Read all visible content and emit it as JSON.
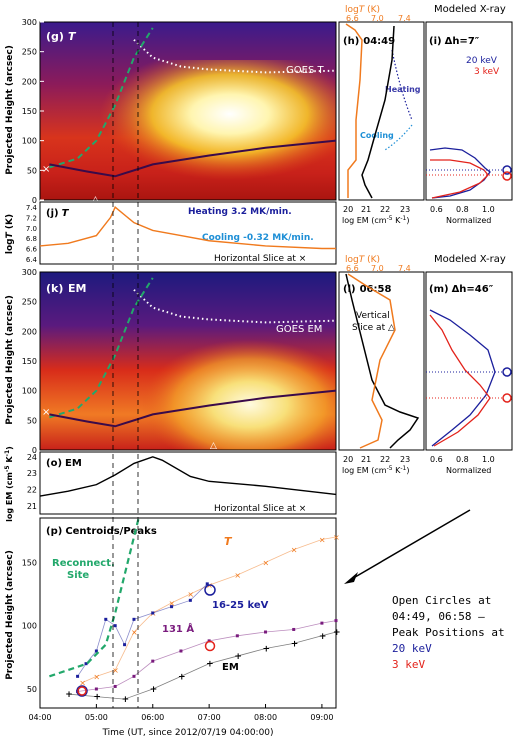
{
  "colors": {
    "orange": "#f07a1e",
    "navy": "#1b1f9c",
    "red": "#e3231b",
    "purple": "#7a1c7e",
    "green": "#22a86b",
    "lightblue": "#1e8fd6",
    "black": "#000000"
  },
  "panels": {
    "g": {
      "label": "(g)",
      "var": "T",
      "note": "GOES T"
    },
    "h": {
      "label": "(h)",
      "time": "04:49",
      "xlabel": "log EM (cm",
      "xlabel_exp": "-5",
      "xlabel_tail": " K",
      "xlabel_exp2": "-1",
      "xlabel_close": ")",
      "top_axis": "log",
      "top_axis_T": "T",
      "top_axis_unit": " (K)",
      "top_ticks": [
        "6.6",
        "7.0",
        "7.4"
      ],
      "heating": "Heating",
      "cooling": "Cooling",
      "bottom_ticks": [
        "20",
        "21",
        "22",
        "23"
      ]
    },
    "i": {
      "label": "(i)",
      "title": "Modeled X-ray",
      "dh": "Δh=7″",
      "e1": "20 keV",
      "e2": "3 keV",
      "xlabel": "Normalized",
      "ticks": [
        "0.6",
        "0.8",
        "1.0"
      ]
    },
    "j": {
      "label": "(j)",
      "var": "T",
      "ylabel": "log",
      "ylabel_T": "T",
      "ylabel_unit": " (K)",
      "heating_rate": "Heating 3.2 MK/min.",
      "cooling_rate": "Cooling -0.32 MK/min.",
      "slice": "Horizontal Slice at ×",
      "yticks": [
        "6.4",
        "6.6",
        "6.8",
        "7.0",
        "7.2",
        "7.4"
      ]
    },
    "k": {
      "label": "(k)",
      "var": "EM",
      "note": "GOES EM"
    },
    "l": {
      "label": "(l)",
      "time": "06:58",
      "slice1": "Vertical",
      "slice2": "Slice at △",
      "top_axis": "log",
      "top_axis_T": "T",
      "top_axis_unit": " (K)",
      "top_ticks": [
        "6.6",
        "7.0",
        "7.4"
      ],
      "xlabel": "log EM (cm",
      "xlabel_exp": "-5",
      "xlabel_tail": " K",
      "xlabel_exp2": "-1",
      "xlabel_close": ")",
      "bottom_ticks": [
        "20",
        "21",
        "22",
        "23"
      ]
    },
    "m": {
      "label": "(m)",
      "title": "Modeled X-ray",
      "dh": "Δh=46″",
      "xlabel": "Normalized",
      "ticks": [
        "0.6",
        "0.8",
        "1.0"
      ]
    },
    "o": {
      "label": "(o)",
      "var": "EM",
      "ylabel": "log EM (cm",
      "ylabel_exp": "-5",
      "ylabel_tail": " K",
      "ylabel_exp2": "-1",
      "ylabel_close": ")",
      "slice": "Horizontal Slice at ×",
      "yticks": [
        "21",
        "22",
        "23",
        "24"
      ]
    },
    "p": {
      "label": "(p)",
      "title": "Centroids/Peaks",
      "reconnect1": "Reconnect.",
      "reconnect2": "Site",
      "T": "T",
      "hard": "16-25 keV",
      "euv": "131 Å",
      "em": "EM",
      "xlabel": "Time (UT, since 2012/07/19 04:00:00)",
      "xticks": [
        "04:00",
        "05:00",
        "06:00",
        "07:00",
        "08:00",
        "09:00"
      ],
      "yticks": [
        "50",
        "100",
        "150"
      ]
    },
    "map_axes": {
      "ylabel": "Projected Height (arcsec)",
      "yticks": [
        "0",
        "50",
        "100",
        "150",
        "200",
        "250",
        "300"
      ]
    }
  },
  "annotation": {
    "line1": "Open Circles at",
    "line2": "04:49, 06:58 –",
    "line3": "Peak Positions at",
    "line4": "20 keV",
    "line5": "3 keV"
  },
  "chart_data": [
    {
      "type": "heatmap",
      "panel": "g",
      "title": "T",
      "ylabel": "Projected Height (arcsec)",
      "ylim": [
        0,
        300
      ],
      "xlim": [
        "04:00",
        "09:15"
      ],
      "series": [
        {
          "name": "GOES T",
          "x": [
            "04:00",
            "05:00",
            "05:40",
            "06:00",
            "06:30",
            "07:00",
            "08:00",
            "09:15"
          ],
          "y": [
            null,
            null,
            270,
            240,
            225,
            220,
            215,
            218
          ]
        },
        {
          "name": "Reconnect. Site",
          "x": [
            "04:10",
            "04:40",
            "05:00",
            "05:20",
            "05:40",
            "06:00"
          ],
          "y": [
            55,
            70,
            100,
            160,
            240,
            290
          ]
        },
        {
          "name": "EM centroid",
          "x": [
            "04:10",
            "04:50",
            "05:20",
            "06:00",
            "07:00",
            "08:00",
            "09:15"
          ],
          "y": [
            60,
            48,
            40,
            60,
            75,
            88,
            100
          ]
        }
      ]
    },
    {
      "type": "line",
      "panel": "j",
      "title": "T",
      "ylabel": "log T (K)",
      "ylim": [
        6.3,
        7.5
      ],
      "x": [
        "04:00",
        "04:30",
        "05:00",
        "05:15",
        "05:20",
        "05:40",
        "06:00",
        "06:30",
        "07:00",
        "08:00",
        "09:00",
        "09:15"
      ],
      "series": [
        {
          "name": "log T",
          "values": [
            6.65,
            6.7,
            6.85,
            7.2,
            7.4,
            7.1,
            6.95,
            6.85,
            6.75,
            6.65,
            6.6,
            6.6
          ]
        }
      ],
      "annotations": [
        "Heating 3.2 MK/min.",
        "Cooling -0.32 MK/min."
      ]
    },
    {
      "type": "line",
      "panel": "o",
      "title": "EM",
      "ylabel": "log EM (cm^-5 K^-1)",
      "ylim": [
        20.5,
        24.3
      ],
      "x": [
        "04:00",
        "04:30",
        "05:00",
        "05:20",
        "05:40",
        "06:00",
        "06:10",
        "06:40",
        "07:00",
        "08:00",
        "09:00",
        "09:15"
      ],
      "series": [
        {
          "name": "log EM",
          "values": [
            21.6,
            21.9,
            22.3,
            22.9,
            23.6,
            24.0,
            23.8,
            22.8,
            22.5,
            22.2,
            21.8,
            21.7
          ]
        }
      ]
    },
    {
      "type": "scatter",
      "panel": "p",
      "title": "Centroids/Peaks",
      "ylabel": "Projected Height (arcsec)",
      "xlabel": "Time (UT, since 2012/07/19 04:00:00)",
      "ylim": [
        35,
        185
      ],
      "series": [
        {
          "name": "T",
          "x": [
            "04:45",
            "05:00",
            "05:20",
            "05:40",
            "06:00",
            "06:20",
            "06:40",
            "07:00",
            "07:30",
            "08:00",
            "08:30",
            "09:00",
            "09:15"
          ],
          "y": [
            55,
            60,
            65,
            95,
            110,
            118,
            125,
            132,
            140,
            150,
            160,
            168,
            170
          ]
        },
        {
          "name": "16-25 keV",
          "x": [
            "04:40",
            "04:49",
            "05:00",
            "05:10",
            "05:20",
            "05:30",
            "05:40",
            "06:00",
            "06:20",
            "06:40",
            "06:58"
          ],
          "y": [
            60,
            70,
            80,
            105,
            100,
            85,
            105,
            110,
            115,
            120,
            133
          ]
        },
        {
          "name": "131 Å",
          "x": [
            "04:40",
            "05:00",
            "05:20",
            "05:40",
            "06:00",
            "06:30",
            "07:00",
            "07:30",
            "08:00",
            "08:30",
            "09:00",
            "09:15"
          ],
          "y": [
            48,
            50,
            52,
            60,
            72,
            80,
            88,
            92,
            95,
            97,
            102,
            104
          ]
        },
        {
          "name": "EM",
          "x": [
            "04:30",
            "05:00",
            "05:30",
            "06:00",
            "06:30",
            "07:00",
            "07:30",
            "08:00",
            "08:30",
            "09:00",
            "09:15"
          ],
          "y": [
            46,
            44,
            42,
            50,
            60,
            70,
            76,
            82,
            86,
            92,
            95
          ]
        },
        {
          "name": "Reconnect. Site",
          "x": [
            "04:10",
            "04:30",
            "04:50",
            "05:10",
            "05:20",
            "05:30",
            "05:45"
          ],
          "y": [
            60,
            65,
            70,
            85,
            110,
            140,
            185
          ]
        }
      ]
    }
  ]
}
